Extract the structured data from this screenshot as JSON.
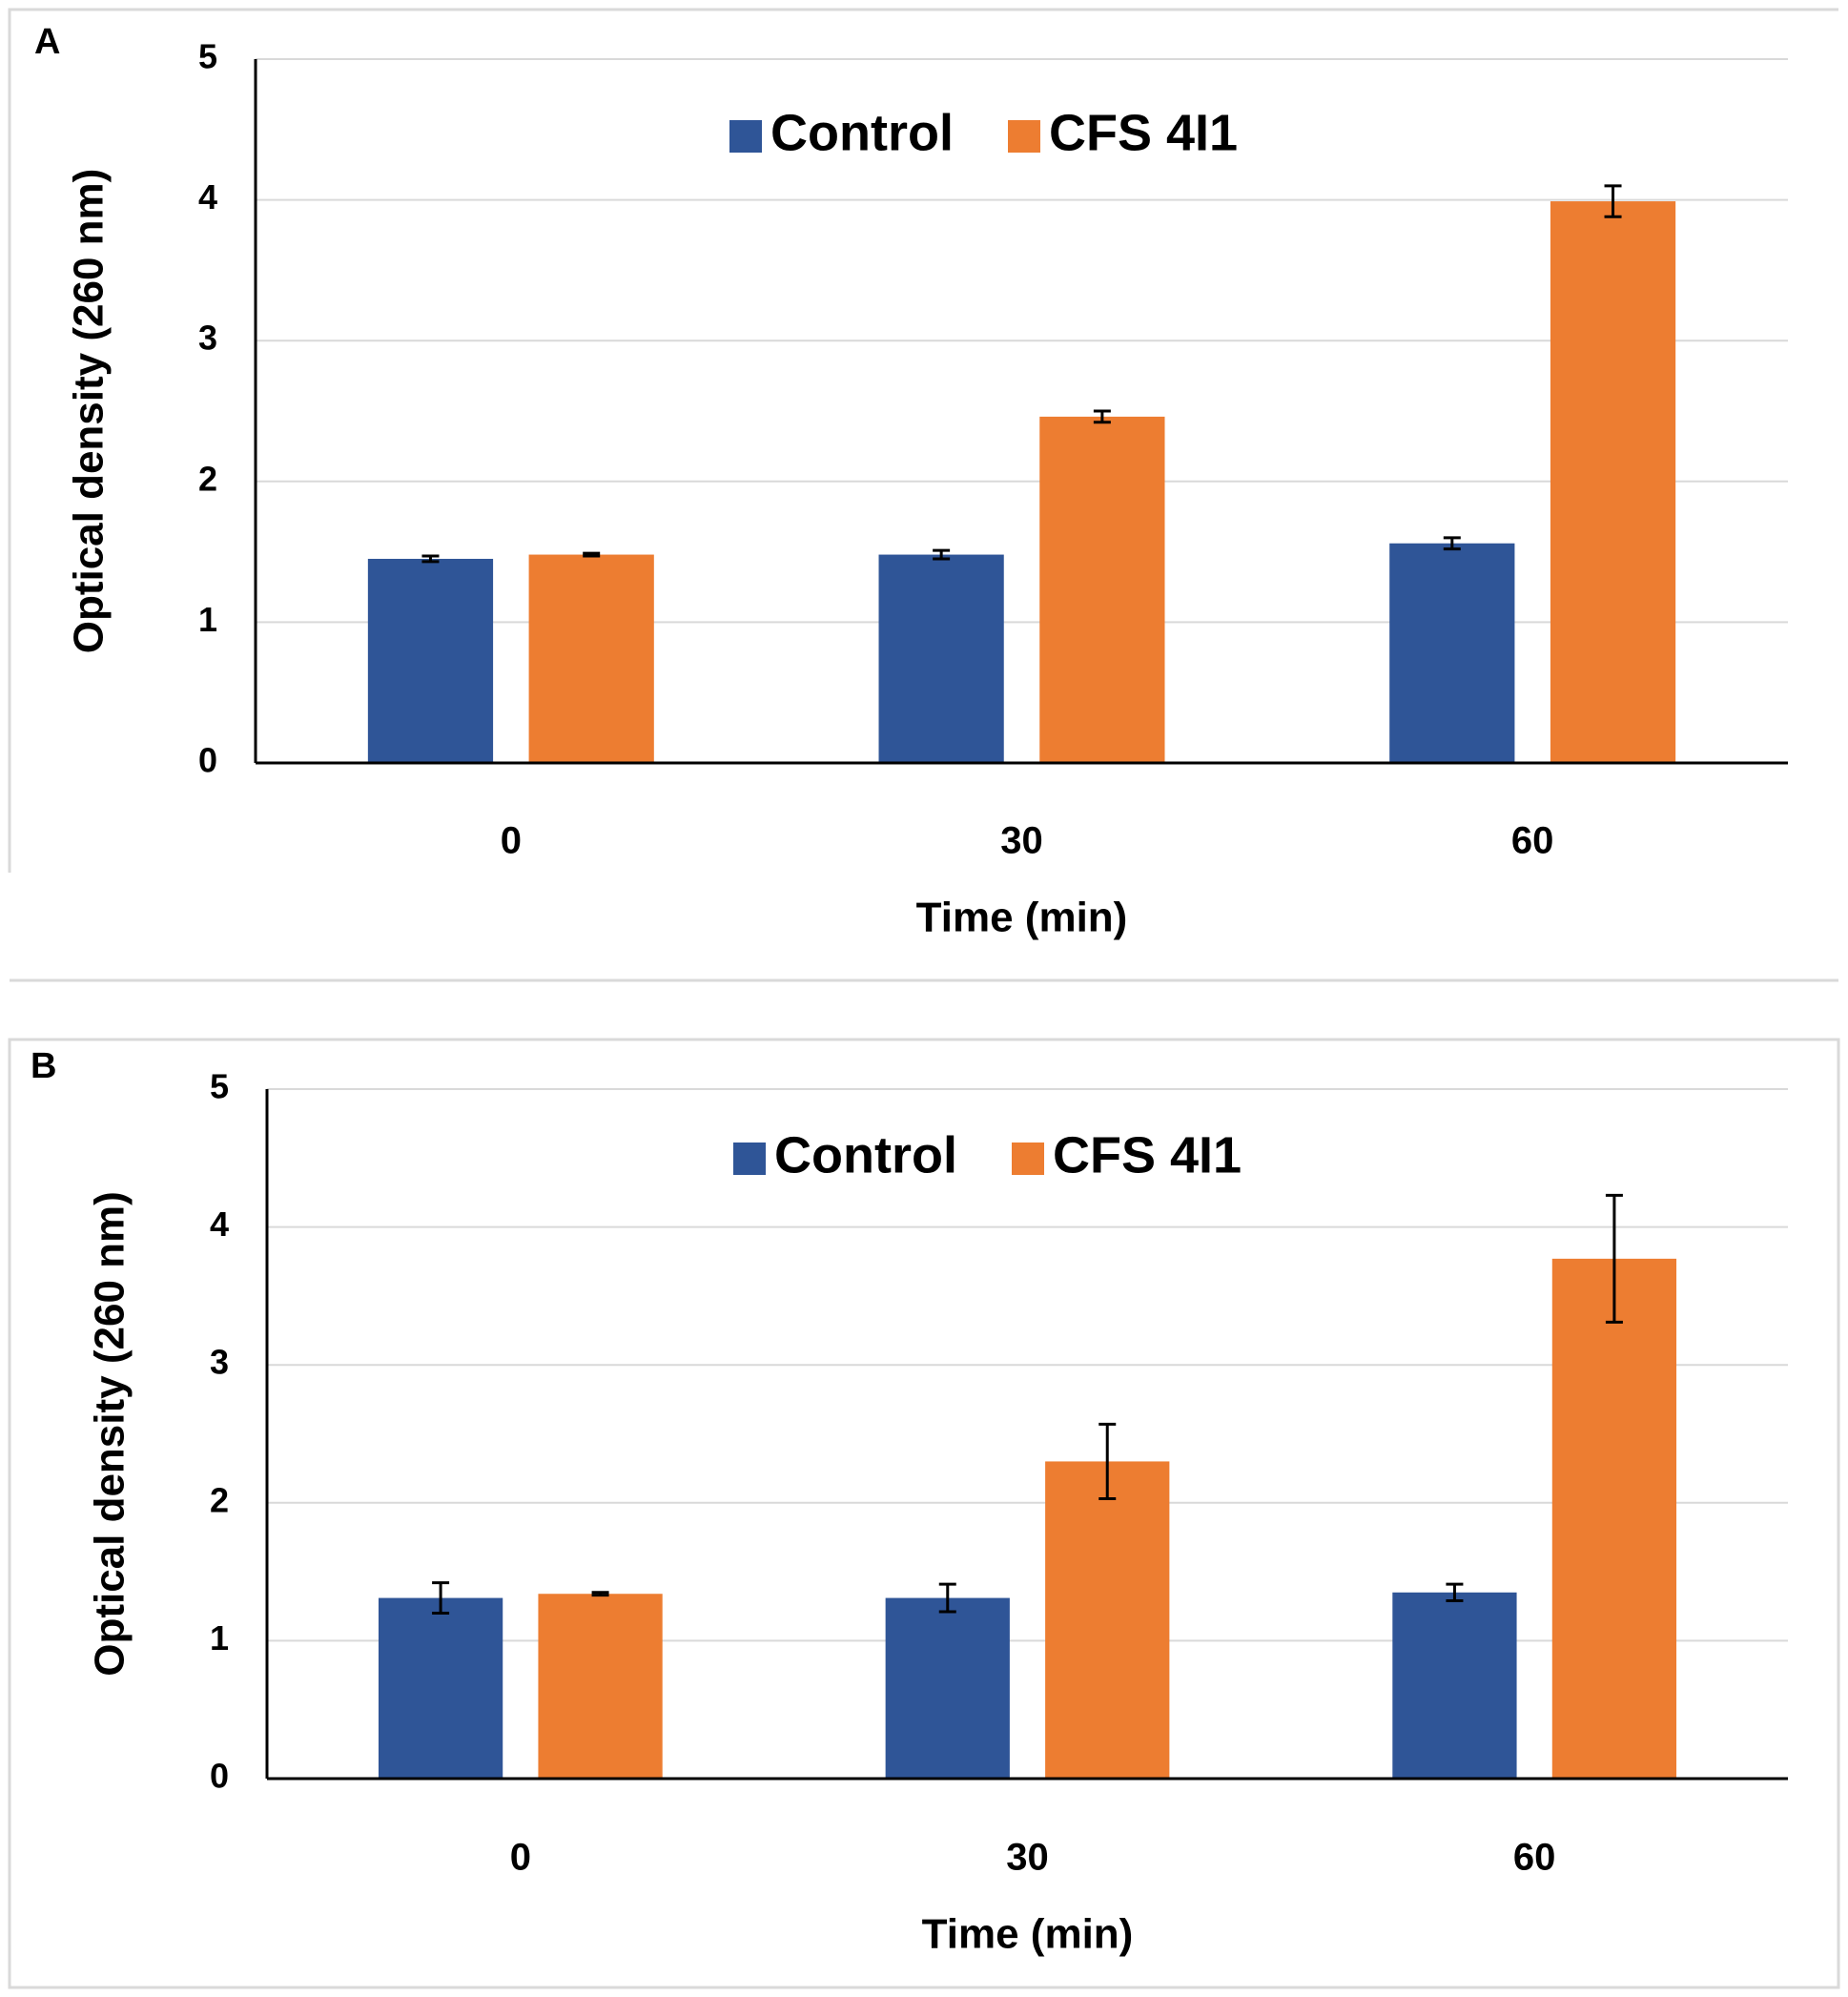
{
  "chart_data": [
    {
      "panel": "A",
      "type": "bar",
      "categories": [
        "0",
        "30",
        "60"
      ],
      "series": [
        {
          "name": "Control",
          "color": "#2F5597",
          "values": [
            1.45,
            1.48,
            1.56
          ],
          "errors": [
            0.02,
            0.03,
            0.04
          ]
        },
        {
          "name": "CFS 4I1",
          "color": "#ED7D31",
          "values": [
            1.48,
            2.46,
            3.99
          ],
          "errors": [
            0.01,
            0.04,
            0.11
          ]
        }
      ],
      "xlabel": "Time (min)",
      "ylabel": "Optical density (260 nm)",
      "ylim": [
        0,
        5
      ],
      "yticks": [
        "0",
        "1",
        "2",
        "3",
        "4",
        "5"
      ],
      "grid": true,
      "legend_position": "top-center"
    },
    {
      "panel": "B",
      "type": "bar",
      "categories": [
        "0",
        "30",
        "60"
      ],
      "series": [
        {
          "name": "Control",
          "color": "#2F5597",
          "values": [
            1.31,
            1.31,
            1.35
          ],
          "errors": [
            0.11,
            0.1,
            0.06
          ]
        },
        {
          "name": "CFS 4I1",
          "color": "#ED7D31",
          "values": [
            1.34,
            2.3,
            3.77
          ],
          "errors": [
            0.01,
            0.27,
            0.46
          ]
        }
      ],
      "xlabel": "Time (min)",
      "ylabel": "Optical density (260 nm)",
      "ylim": [
        0,
        5
      ],
      "yticks": [
        "0",
        "1",
        "2",
        "3",
        "4",
        "5"
      ],
      "grid": true,
      "legend_position": "top-center"
    }
  ]
}
